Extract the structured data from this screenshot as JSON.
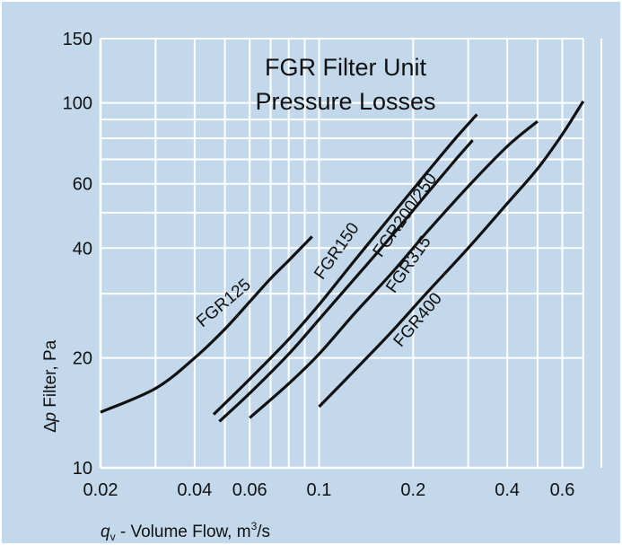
{
  "colors": {
    "panel": "#c3d8eb",
    "grid": "#ffffff",
    "curve": "#111111"
  },
  "chart_data": {
    "type": "line",
    "title": [
      "FGR Filter  Unit",
      "Pressure  Losses"
    ],
    "xlabel": {
      "symbol": "q",
      "subscript": "v",
      "text": " - Volume Flow, m",
      "superscript": "3",
      "suffix": "/s"
    },
    "ylabel": {
      "prefix": "∆",
      "symbol": "p",
      "text": " Filter, Pa"
    },
    "xscale": "log",
    "yscale": "log",
    "xlim": [
      0.02,
      0.8
    ],
    "ylim": [
      10,
      150
    ],
    "x_major_ticks": [
      0.02,
      0.04,
      0.06,
      0.1,
      0.2,
      0.4,
      0.6
    ],
    "x_tick_labels": [
      "0.02",
      "0.04",
      "0.06",
      "0.1",
      "0.2",
      "0.4",
      "0.6"
    ],
    "x_grid": [
      0.02,
      0.03,
      0.04,
      0.05,
      0.06,
      0.07,
      0.08,
      0.09,
      0.1,
      0.2,
      0.3,
      0.4,
      0.5,
      0.6,
      0.7,
      0.8
    ],
    "y_major_ticks": [
      10,
      20,
      40,
      60,
      100,
      150
    ],
    "y_tick_labels": [
      "10",
      "20",
      "40",
      "60",
      "100",
      "150"
    ],
    "y_grid": [
      10,
      20,
      30,
      40,
      50,
      60,
      70,
      80,
      90,
      100,
      150
    ],
    "grid": true,
    "series": [
      {
        "name": "FGR125",
        "x": [
          0.02,
          0.03,
          0.04,
          0.05,
          0.06,
          0.07,
          0.08,
          0.095
        ],
        "y": [
          14.2,
          16.5,
          20,
          24,
          28.5,
          33,
          37,
          43
        ]
      },
      {
        "name": "FGR150",
        "x": [
          0.046,
          0.06,
          0.08,
          0.1,
          0.13,
          0.17,
          0.22,
          0.27,
          0.32
        ],
        "y": [
          14,
          17.5,
          22.5,
          28,
          37,
          49,
          64,
          79,
          93
        ]
      },
      {
        "name": "FGR200/250",
        "x": [
          0.048,
          0.06,
          0.08,
          0.1,
          0.13,
          0.17,
          0.22,
          0.27,
          0.31
        ],
        "y": [
          13.4,
          16,
          20.5,
          25.5,
          33,
          43,
          56,
          69,
          79
        ]
      },
      {
        "name": "FGR315",
        "x": [
          0.06,
          0.08,
          0.1,
          0.13,
          0.17,
          0.22,
          0.3,
          0.4,
          0.5
        ],
        "y": [
          13.7,
          17,
          20.5,
          26.5,
          34,
          44,
          59,
          76,
          89
        ]
      },
      {
        "name": "FGR400",
        "x": [
          0.1,
          0.13,
          0.17,
          0.22,
          0.3,
          0.4,
          0.5,
          0.6,
          0.7
        ],
        "y": [
          14.7,
          18.5,
          23.5,
          30,
          40,
          53,
          66,
          82,
          101
        ]
      }
    ]
  }
}
